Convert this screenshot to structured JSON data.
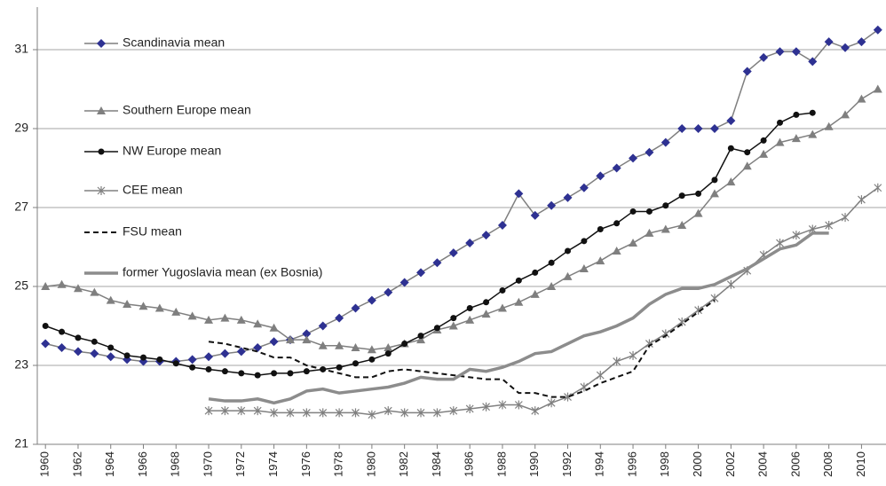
{
  "chart_data": {
    "type": "line",
    "x": [
      1960,
      1961,
      1962,
      1963,
      1964,
      1965,
      1966,
      1967,
      1968,
      1969,
      1970,
      1971,
      1972,
      1973,
      1974,
      1975,
      1976,
      1977,
      1978,
      1979,
      1980,
      1981,
      1982,
      1983,
      1984,
      1985,
      1986,
      1987,
      1988,
      1989,
      1990,
      1991,
      1992,
      1993,
      1994,
      1995,
      1996,
      1997,
      1998,
      1999,
      2000,
      2001,
      2002,
      2003,
      2004,
      2005,
      2006,
      2007,
      2008,
      2009,
      2010,
      2011
    ],
    "xlim": [
      1959.5,
      2011.5
    ],
    "xticks": [
      1960,
      1962,
      1964,
      1966,
      1968,
      1970,
      1972,
      1974,
      1976,
      1978,
      1980,
      1982,
      1984,
      1986,
      1988,
      1990,
      1992,
      1994,
      1996,
      1998,
      2000,
      2002,
      2004,
      2006,
      2008,
      2010
    ],
    "ylim": [
      21,
      32
    ],
    "yticks": [
      21,
      23,
      25,
      27,
      29,
      31
    ],
    "grid": true,
    "legend": "upper left",
    "series": [
      {
        "name": "Scandinavia mean",
        "color": "#2e3192",
        "line_color": "#7f7f7f",
        "marker": "diamond",
        "style": "solid",
        "values": [
          23.55,
          23.45,
          23.35,
          23.3,
          23.22,
          23.15,
          23.1,
          23.1,
          23.1,
          23.15,
          23.22,
          23.3,
          23.35,
          23.45,
          23.6,
          23.65,
          23.8,
          24.0,
          24.2,
          24.45,
          24.65,
          24.85,
          25.1,
          25.35,
          25.6,
          25.85,
          26.1,
          26.3,
          26.55,
          27.35,
          26.8,
          27.05,
          27.25,
          27.5,
          27.8,
          28.0,
          28.25,
          28.4,
          28.65,
          29.0,
          29.0,
          29.0,
          29.2,
          30.45,
          30.8,
          30.95,
          30.95,
          30.7,
          31.2,
          31.05,
          31.2,
          31.5
        ]
      },
      {
        "name": "Southern Europe mean",
        "color": "#7f7f7f",
        "line_color": "#7f7f7f",
        "marker": "triangle",
        "style": "solid",
        "values": [
          25.0,
          25.05,
          24.95,
          24.85,
          24.65,
          24.55,
          24.5,
          24.45,
          24.35,
          24.25,
          24.15,
          24.2,
          24.15,
          24.05,
          23.95,
          23.65,
          23.65,
          23.5,
          23.5,
          23.45,
          23.4,
          23.45,
          23.55,
          23.65,
          23.9,
          24.0,
          24.15,
          24.3,
          24.45,
          24.6,
          24.8,
          25.0,
          25.25,
          25.45,
          25.65,
          25.9,
          26.1,
          26.35,
          26.45,
          26.55,
          26.85,
          27.35,
          27.65,
          28.05,
          28.35,
          28.65,
          28.75,
          28.85,
          29.05,
          29.35,
          29.75,
          30.0
        ]
      },
      {
        "name": "NW Europe mean",
        "color": "#111111",
        "line_color": "#111111",
        "marker": "circle",
        "style": "solid",
        "values": [
          24.0,
          23.85,
          23.7,
          23.6,
          23.45,
          23.25,
          23.2,
          23.15,
          23.05,
          22.95,
          22.9,
          22.85,
          22.8,
          22.75,
          22.8,
          22.8,
          22.85,
          22.9,
          22.95,
          23.05,
          23.15,
          23.3,
          23.55,
          23.75,
          23.95,
          24.2,
          24.45,
          24.6,
          24.9,
          25.15,
          25.35,
          25.6,
          25.9,
          26.15,
          26.45,
          26.6,
          26.9,
          26.9,
          27.05,
          27.3,
          27.35,
          27.7,
          28.5,
          28.4,
          28.7,
          29.15,
          29.35,
          29.4,
          null,
          null,
          null,
          null
        ]
      },
      {
        "name": "CEE mean",
        "color": "#808080",
        "line_color": "#808080",
        "marker": "asterisk",
        "style": "solid",
        "values": [
          null,
          null,
          null,
          null,
          null,
          null,
          null,
          null,
          null,
          null,
          21.85,
          21.85,
          21.85,
          21.85,
          21.8,
          21.8,
          21.8,
          21.8,
          21.8,
          21.8,
          21.75,
          21.85,
          21.8,
          21.8,
          21.8,
          21.85,
          21.9,
          21.95,
          22.0,
          22.0,
          21.85,
          22.05,
          22.2,
          22.45,
          22.75,
          23.1,
          23.25,
          23.55,
          23.8,
          24.1,
          24.4,
          24.7,
          25.05,
          25.4,
          25.8,
          26.1,
          26.3,
          26.45,
          26.55,
          26.75,
          27.2,
          27.5
        ]
      },
      {
        "name": "FSU mean",
        "color": "#111111",
        "line_color": "#111111",
        "marker": "none",
        "style": "dashed",
        "values": [
          null,
          null,
          null,
          null,
          null,
          null,
          null,
          null,
          null,
          null,
          23.6,
          23.55,
          23.45,
          23.35,
          23.2,
          23.2,
          23.0,
          22.9,
          22.8,
          22.7,
          22.7,
          22.85,
          22.9,
          22.85,
          22.8,
          22.75,
          22.7,
          22.65,
          22.65,
          22.3,
          22.3,
          22.2,
          22.2,
          22.35,
          22.55,
          22.7,
          22.85,
          23.5,
          23.75,
          24.05,
          24.35,
          24.65,
          null,
          null,
          null,
          null,
          null,
          null,
          null,
          null,
          null,
          null
        ]
      },
      {
        "name": "former Yugoslavia mean (ex Bosnia)",
        "color": "#8c8c8c",
        "line_color": "#8c8c8c",
        "marker": "none",
        "style": "thick",
        "values": [
          null,
          null,
          null,
          null,
          null,
          null,
          null,
          null,
          null,
          null,
          22.15,
          22.1,
          22.1,
          22.15,
          22.05,
          22.15,
          22.35,
          22.4,
          22.3,
          22.35,
          22.4,
          22.45,
          22.55,
          22.7,
          22.65,
          22.65,
          22.9,
          22.85,
          22.95,
          23.1,
          23.3,
          23.35,
          23.55,
          23.75,
          23.85,
          24.0,
          24.2,
          24.55,
          24.8,
          24.95,
          24.95,
          25.05,
          25.25,
          25.45,
          25.7,
          25.95,
          26.05,
          26.35,
          26.35,
          null,
          null,
          null
        ]
      }
    ]
  }
}
